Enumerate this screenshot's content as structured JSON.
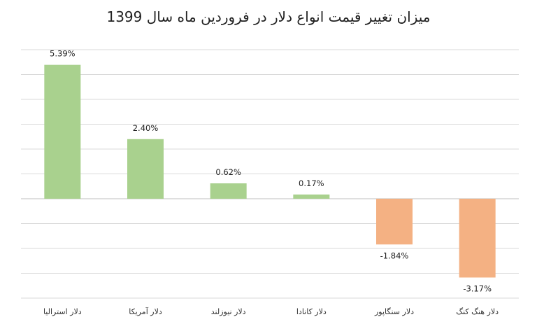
{
  "chart_data": {
    "type": "bar",
    "title": "میزان تغییر قیمت انواع دلار در فروردین ماه سال 1399",
    "categories": [
      "دلار استرالیا",
      "دلار آمریکا",
      "دلار نیوزلند",
      "دلار کانادا",
      "دلار سنگاپور",
      "دلار هنگ کنگ"
    ],
    "values": [
      5.39,
      2.4,
      0.62,
      0.17,
      -1.84,
      -3.17
    ],
    "data_labels": [
      "5.39%",
      "2.40%",
      "0.62%",
      "0.17%",
      "-1.84%",
      "-3.17%"
    ],
    "ylim": [
      -4,
      6
    ],
    "grid": true,
    "y_axis_labels_shown": false,
    "legend": "none",
    "colors": {
      "positive": "#a9d18e",
      "negative": "#f4b183",
      "grid": "#d9d9d9"
    }
  }
}
